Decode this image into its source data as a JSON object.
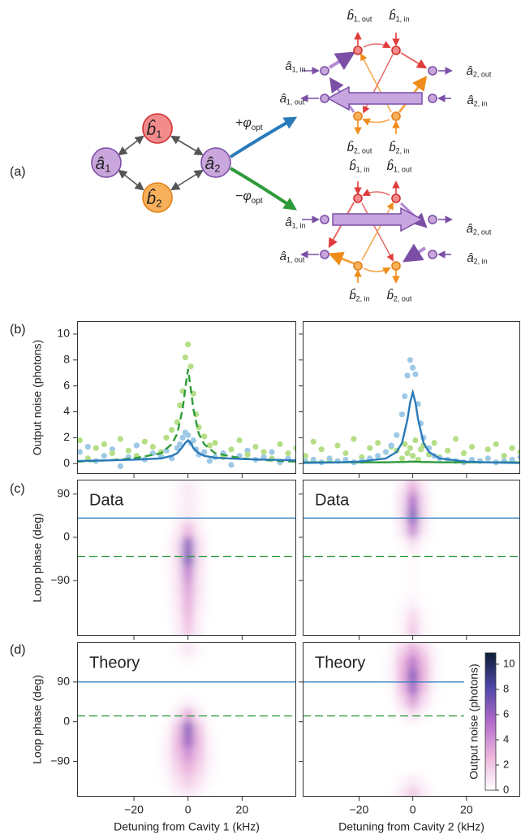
{
  "panel_labels": [
    "(a)",
    "(b)",
    "(c)",
    "(d)"
  ],
  "diagram": {
    "modes": [
      {
        "symbol": "â",
        "sub": "1"
      },
      {
        "symbol": "b̂",
        "sub": "1"
      },
      {
        "symbol": "b̂",
        "sub": "2"
      },
      {
        "symbol": "â",
        "sub": "2"
      }
    ],
    "phases": [
      {
        "text": "+φ",
        "sub": "opt"
      },
      {
        "text": "−φ",
        "sub": "opt"
      }
    ],
    "top_ports": [
      {
        "symbol": "b̂",
        "sub": "1, out"
      },
      {
        "symbol": "b̂",
        "sub": "1, in"
      },
      {
        "symbol": "â",
        "sub": "1, in"
      },
      {
        "symbol": "â",
        "sub": "1, out"
      },
      {
        "symbol": "â",
        "sub": "2, out"
      },
      {
        "symbol": "â",
        "sub": "2, in"
      },
      {
        "symbol": "b̂",
        "sub": "2, out"
      },
      {
        "symbol": "b̂",
        "sub": "2, in"
      }
    ],
    "bottom_ports": [
      {
        "symbol": "b̂",
        "sub": "1, in"
      },
      {
        "symbol": "b̂",
        "sub": "1, out"
      },
      {
        "symbol": "â",
        "sub": "1, in"
      },
      {
        "symbol": "â",
        "sub": "1, out"
      },
      {
        "symbol": "â",
        "sub": "2, out"
      },
      {
        "symbol": "â",
        "sub": "2, in"
      },
      {
        "symbol": "b̂",
        "sub": "2, in"
      },
      {
        "symbol": "b̂",
        "sub": "2, out"
      }
    ]
  },
  "chart_data": [
    {
      "type": "scatter",
      "ylabel": "Output noise (photons)",
      "xlim": [
        -41,
        40
      ],
      "xticks": [
        {
          "value": -20,
          "label": "−20"
        },
        0,
        20
      ],
      "xtick_labels": false,
      "ylim": [
        -0.8,
        11
      ],
      "yticks": [
        0,
        2,
        4,
        6,
        8,
        10
      ],
      "series": [
        {
          "color": "#9ec9e6",
          "x": [
            -40,
            -37,
            -34,
            -31,
            -28,
            -25,
            -22,
            -19,
            -16,
            -13,
            -10,
            -8,
            -6,
            -4,
            -3,
            -2,
            -1,
            0,
            1,
            2,
            3,
            4,
            6,
            8,
            10,
            13,
            16,
            19,
            22,
            25,
            28,
            31,
            34,
            37,
            40
          ],
          "values": [
            0.9,
            1.3,
            0.2,
            0.6,
            1.1,
            -0.2,
            0.5,
            1.4,
            0.3,
            0.8,
            0.6,
            1.0,
            0.4,
            1.2,
            1.5,
            2.0,
            2.4,
            2.2,
            1.6,
            1.8,
            1.1,
            0.7,
            0.9,
            0.2,
            0.5,
            0.8,
            -0.1,
            0.6,
            1.0,
            0.3,
            0.5,
            0.9,
            0.1,
            0.4,
            1.2
          ]
        },
        {
          "color": "#b5de86",
          "x": [
            -40,
            -37,
            -34,
            -31,
            -28,
            -25,
            -22,
            -19,
            -16,
            -13,
            -10,
            -8,
            -6,
            -4,
            -3,
            -2,
            -1,
            0,
            1,
            2,
            3,
            4,
            6,
            8,
            10,
            13,
            16,
            19,
            22,
            25,
            28,
            31,
            34,
            37,
            40
          ],
          "values": [
            1.8,
            0.4,
            1.2,
            1.5,
            0.8,
            1.9,
            1.0,
            0.6,
            1.7,
            1.3,
            0.9,
            2.0,
            2.6,
            3.2,
            4.5,
            5.6,
            8.2,
            9.2,
            7.5,
            5.4,
            3.8,
            2.8,
            2.1,
            1.4,
            1.6,
            0.5,
            1.1,
            1.8,
            0.7,
            1.3,
            0.9,
            0.4,
            1.5,
            0.8,
            1.2
          ]
        },
        {
          "type": "line",
          "color": "#2e9a3a",
          "dashed": true,
          "x": [
            -41,
            -30,
            -20,
            -10,
            -6,
            -4,
            -2,
            -1,
            0,
            1,
            2,
            4,
            6,
            10,
            20,
            30,
            40
          ],
          "values": [
            0.15,
            0.25,
            0.4,
            0.8,
            1.5,
            2.3,
            4.2,
            5.8,
            7.3,
            5.8,
            4.2,
            2.3,
            1.5,
            0.8,
            0.4,
            0.25,
            0.15
          ]
        },
        {
          "type": "line",
          "color": "#2a7ab9",
          "x": [
            -41,
            -30,
            -20,
            -10,
            -6,
            -4,
            -2,
            -1,
            0,
            1,
            2,
            4,
            6,
            10,
            20,
            30,
            40
          ],
          "values": [
            0.2,
            0.25,
            0.3,
            0.4,
            0.6,
            0.8,
            1.3,
            1.6,
            1.8,
            1.6,
            1.2,
            0.8,
            0.6,
            0.45,
            0.35,
            0.3,
            0.25
          ]
        }
      ]
    },
    {
      "type": "scatter",
      "xlim": [
        -41,
        40
      ],
      "xticks": [
        {
          "value": -20,
          "label": "−20"
        },
        0,
        20
      ],
      "xtick_labels": false,
      "ylim": [
        -0.8,
        11
      ],
      "yticks": [
        0,
        2,
        4,
        6,
        8,
        10
      ],
      "ytick_labels": false,
      "series": [
        {
          "color": "#b5de86",
          "x": [
            -40,
            -37,
            -34,
            -31,
            -28,
            -25,
            -22,
            -19,
            -16,
            -13,
            -10,
            -8,
            -6,
            -4,
            -3,
            -2,
            -1,
            0,
            1,
            2,
            3,
            4,
            6,
            8,
            10,
            13,
            16,
            19,
            22,
            25,
            28,
            31,
            34,
            37,
            40
          ],
          "values": [
            0.6,
            1.7,
            1.1,
            0.3,
            1.4,
            0.8,
            1.9,
            0.5,
            1.2,
            1.6,
            0.9,
            1.3,
            1.0,
            0.4,
            1.5,
            0.8,
            1.2,
            0.6,
            1.8,
            0.3,
            1.1,
            1.4,
            0.7,
            1.6,
            0.5,
            1.0,
            1.9,
            0.8,
            1.3,
            0.2,
            1.1,
            1.5,
            0.6,
            1.2,
            0.9
          ]
        },
        {
          "color": "#9ec9e6",
          "x": [
            -40,
            -37,
            -34,
            -31,
            -28,
            -25,
            -22,
            -19,
            -16,
            -13,
            -10,
            -8,
            -6,
            -4,
            -3,
            -2,
            -1,
            0,
            1,
            2,
            3,
            4,
            6,
            8,
            10,
            13,
            16,
            19,
            22,
            25,
            28,
            31,
            34,
            37,
            40
          ],
          "values": [
            0.2,
            0.3,
            0.1,
            0.4,
            0.2,
            0.3,
            0.1,
            0.2,
            0.4,
            0.6,
            0.9,
            1.4,
            2.2,
            3.8,
            5.2,
            6.8,
            8.0,
            7.4,
            6.9,
            4.6,
            3.1,
            2.0,
            1.2,
            0.6,
            0.4,
            0.3,
            0.2,
            0.1,
            0.3,
            0.2,
            0.4,
            0.1,
            0.2,
            0.3,
            0.5
          ]
        },
        {
          "type": "line",
          "color": "#2e9a3a",
          "x": [
            -41,
            -30,
            -20,
            -10,
            -6,
            -4,
            -2,
            -1,
            0,
            1,
            2,
            4,
            6,
            10,
            20,
            30,
            40
          ],
          "values": [
            0.1,
            0.1,
            0.1,
            0.1,
            0.12,
            0.12,
            0.14,
            0.15,
            0.15,
            0.15,
            0.14,
            0.12,
            0.12,
            0.1,
            0.1,
            0.1,
            0.1
          ]
        },
        {
          "type": "line",
          "color": "#2a7ab9",
          "x": [
            -41,
            -30,
            -20,
            -10,
            -6,
            -4,
            -2,
            -1,
            0,
            1,
            2,
            4,
            6,
            10,
            20,
            30,
            40
          ],
          "values": [
            0.05,
            0.08,
            0.15,
            0.4,
            0.9,
            1.6,
            3.4,
            4.7,
            5.5,
            4.7,
            3.4,
            1.6,
            0.9,
            0.4,
            0.15,
            0.08,
            0.05
          ]
        }
      ]
    },
    {
      "type": "heatmap",
      "annotation": "Data",
      "ylabel": "Loop phase (deg)",
      "xlim": [
        -41,
        40
      ],
      "xticks": [
        {
          "value": -20,
          "label": "−20"
        },
        0,
        20
      ],
      "xtick_labels": false,
      "ylim": [
        -205,
        120
      ],
      "yticks": [
        {
          "value": -90,
          "label": "−90"
        },
        0,
        90
      ],
      "colormap": [
        "#ffffff",
        "#ecb3dc",
        "#b26bcb",
        "#4f46a8",
        "#0c1e36"
      ],
      "clim": [
        0,
        10.9
      ],
      "x": [
        -8,
        -4,
        0,
        4,
        8
      ],
      "y": [
        105,
        75,
        45,
        15,
        -15,
        -45,
        -75,
        -105,
        -135,
        -165,
        -195
      ],
      "z": [
        [
          0,
          0.3,
          0.8,
          0.3,
          0
        ],
        [
          0,
          0.3,
          0.7,
          0.3,
          0
        ],
        [
          0,
          0.3,
          0.8,
          0.3,
          0
        ],
        [
          0,
          0.6,
          2.5,
          0.6,
          0
        ],
        [
          0.1,
          1.2,
          6.5,
          1.2,
          0.1
        ],
        [
          0.1,
          1.2,
          7,
          1.2,
          0.1
        ],
        [
          0.1,
          1,
          4.5,
          1,
          0.1
        ],
        [
          0.1,
          0.9,
          3.5,
          0.9,
          0.1
        ],
        [
          0.1,
          0.8,
          3,
          0.8,
          0.1
        ],
        [
          0,
          0.6,
          2.5,
          0.6,
          0
        ],
        [
          0,
          0.5,
          2,
          0.5,
          0
        ]
      ],
      "hlines": [
        {
          "value": 40,
          "color": "#2a7ab9"
        },
        {
          "value": -40,
          "color": "#2e9a3a",
          "dashed": true
        }
      ]
    },
    {
      "type": "heatmap",
      "annotation": "Data",
      "xlim": [
        -41,
        40
      ],
      "xticks": [
        {
          "value": -20,
          "label": "−20"
        },
        0,
        20
      ],
      "xtick_labels": false,
      "ylim": [
        -205,
        120
      ],
      "yticks": [
        {
          "value": -90,
          "label": "−90"
        },
        0,
        90
      ],
      "ytick_labels": false,
      "colormap": [
        "#ffffff",
        "#ecb3dc",
        "#b26bcb",
        "#4f46a8",
        "#0c1e36"
      ],
      "clim": [
        0,
        10.9
      ],
      "x": [
        -8,
        -4,
        0,
        4,
        8
      ],
      "y": [
        105,
        75,
        45,
        15,
        -15,
        -45,
        -75,
        -105,
        -135,
        -165,
        -195
      ],
      "z": [
        [
          0,
          0.8,
          3,
          0.8,
          0
        ],
        [
          0,
          1.2,
          5.5,
          1.2,
          0
        ],
        [
          0,
          1.2,
          7,
          1.2,
          0
        ],
        [
          0,
          0.8,
          4.5,
          0.8,
          0
        ],
        [
          0,
          0.2,
          1,
          0.2,
          0
        ],
        [
          0,
          0,
          0.2,
          0,
          0
        ],
        [
          0,
          0,
          0.2,
          0,
          0
        ],
        [
          0,
          0,
          0.2,
          0,
          0
        ],
        [
          0,
          0.1,
          0.5,
          0.1,
          0
        ],
        [
          0,
          0.3,
          1.5,
          0.3,
          0
        ],
        [
          0,
          0.4,
          2,
          0.4,
          0
        ]
      ],
      "hlines": [
        {
          "value": 40,
          "color": "#2a7ab9"
        },
        {
          "value": -40,
          "color": "#2e9a3a",
          "dashed": true
        }
      ]
    },
    {
      "type": "heatmap",
      "annotation": "Theory",
      "ylabel": "Loop phase (deg)",
      "xlabel": "Detuning from Cavity 1 (kHz)",
      "xlim": [
        -41,
        40
      ],
      "xticks": [
        {
          "value": -20,
          "label": "−20"
        },
        0,
        20
      ],
      "ylim": [
        -170,
        180
      ],
      "yticks": [
        {
          "value": -90,
          "label": "−90"
        },
        0,
        90
      ],
      "colormap": [
        "#ffffff",
        "#ecb3dc",
        "#b26bcb",
        "#4f46a8",
        "#0c1e36"
      ],
      "clim": [
        0,
        10.9
      ],
      "x": [
        -8,
        -4,
        0,
        4,
        8
      ],
      "y": [
        165,
        135,
        105,
        75,
        45,
        15,
        -15,
        -45,
        -75,
        -105,
        -135,
        -165
      ],
      "z": [
        [
          0,
          0.3,
          1,
          0.3,
          0
        ],
        [
          0,
          0,
          0.2,
          0,
          0
        ],
        [
          0,
          0,
          0,
          0,
          0
        ],
        [
          0,
          0,
          0,
          0,
          0
        ],
        [
          0,
          0.1,
          0.5,
          0.1,
          0
        ],
        [
          0,
          0.8,
          3,
          0.8,
          0
        ],
        [
          0.2,
          2,
          6.5,
          2,
          0.2
        ],
        [
          0.4,
          2.5,
          6,
          2.5,
          0.4
        ],
        [
          0.5,
          2.2,
          4,
          2.2,
          0.5
        ],
        [
          0.4,
          1.6,
          2.8,
          1.6,
          0.4
        ],
        [
          0.2,
          1,
          1.8,
          1,
          0.2
        ],
        [
          0,
          0.4,
          0.8,
          0.4,
          0
        ]
      ],
      "hlines": [
        {
          "value": 90,
          "color": "#2a7ab9"
        },
        {
          "value": 13,
          "color": "#2e9a3a",
          "dashed": true
        }
      ]
    },
    {
      "type": "heatmap",
      "annotation": "Theory",
      "xlabel": "Detuning from Cavity 2 (kHz)",
      "xlim": [
        -41,
        40
      ],
      "xticks": [
        {
          "value": -20,
          "label": "−20"
        },
        0,
        20
      ],
      "ylim": [
        -170,
        180
      ],
      "yticks": [
        {
          "value": -90,
          "label": "−90"
        },
        0,
        90
      ],
      "ytick_labels": false,
      "colormap": [
        "#ffffff",
        "#ecb3dc",
        "#b26bcb",
        "#4f46a8",
        "#0c1e36"
      ],
      "clim": [
        0,
        10.9
      ],
      "x": [
        -8,
        -4,
        0,
        4,
        8
      ],
      "y": [
        165,
        135,
        105,
        75,
        45,
        15,
        -15,
        -45,
        -75,
        -105,
        -135,
        -165
      ],
      "z": [
        [
          0.3,
          1.5,
          3,
          1.5,
          0.3
        ],
        [
          0.4,
          2.5,
          5,
          2.5,
          0.4
        ],
        [
          0.4,
          2.8,
          6.5,
          2.8,
          0.4
        ],
        [
          0.3,
          2.2,
          6,
          2.2,
          0.3
        ],
        [
          0.1,
          1.2,
          3.5,
          1.2,
          0.1
        ],
        [
          0,
          0.3,
          1,
          0.3,
          0
        ],
        [
          0,
          0,
          0,
          0,
          0
        ],
        [
          0,
          0,
          0,
          0,
          0
        ],
        [
          0,
          0,
          0,
          0,
          0
        ],
        [
          0,
          0,
          0,
          0,
          0
        ],
        [
          0,
          0.3,
          0.8,
          0.3,
          0
        ],
        [
          0.1,
          0.8,
          2,
          0.8,
          0.1
        ]
      ],
      "hlines": [
        {
          "value": 90,
          "color": "#2a7ab9"
        },
        {
          "value": 13,
          "color": "#2e9a3a",
          "dashed": true
        }
      ],
      "colorbar": {
        "label": "Output noise (photons)",
        "ticks": [
          0,
          2,
          4,
          6,
          8,
          10
        ]
      }
    }
  ]
}
